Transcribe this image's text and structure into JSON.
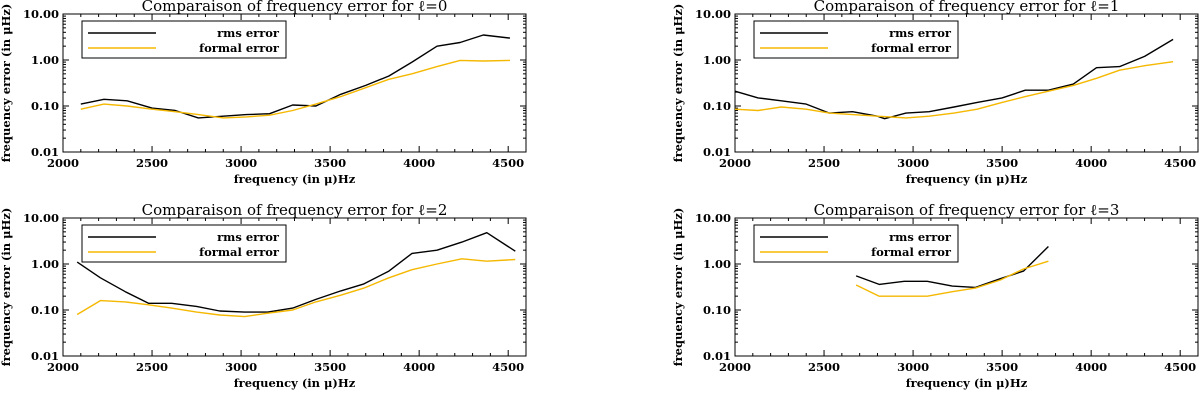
{
  "chart_data": [
    {
      "type": "line",
      "title": "Comparaison of frequency error for ℓ=0",
      "xlabel": "frequency (in μ)Hz",
      "ylabel": "frequency error (in μHz)",
      "xlim": [
        2000,
        4600
      ],
      "ylim": [
        0.01,
        10
      ],
      "yscale": "log",
      "xticks": [
        "2000",
        "2500",
        "3000",
        "3500",
        "4000",
        "4500"
      ],
      "yticks": [
        "0.01",
        "0.10",
        "1.00",
        "10.00"
      ],
      "series": [
        {
          "name": "rms error",
          "color": "#000000",
          "x": [
            2100,
            2230,
            2360,
            2500,
            2630,
            2760,
            2900,
            3030,
            3160,
            3290,
            3420,
            3560,
            3700,
            3830,
            3960,
            4100,
            4230,
            4360,
            4510
          ],
          "y": [
            0.11,
            0.14,
            0.13,
            0.09,
            0.08,
            0.055,
            0.06,
            0.065,
            0.068,
            0.105,
            0.1,
            0.18,
            0.28,
            0.45,
            0.9,
            2.0,
            2.4,
            3.5,
            3.0
          ]
        },
        {
          "name": "formal error",
          "color": "#f5b800",
          "x": [
            2100,
            2230,
            2360,
            2500,
            2630,
            2760,
            2900,
            3030,
            3160,
            3290,
            3420,
            3560,
            3700,
            3830,
            3960,
            4100,
            4230,
            4360,
            4510
          ],
          "y": [
            0.085,
            0.11,
            0.1,
            0.085,
            0.075,
            0.065,
            0.055,
            0.058,
            0.063,
            0.08,
            0.11,
            0.16,
            0.25,
            0.38,
            0.5,
            0.72,
            0.98,
            0.95,
            0.98
          ]
        }
      ]
    },
    {
      "type": "line",
      "title": "Comparaison of frequency error for ℓ=1",
      "xlabel": "frequency (in μ)Hz",
      "ylabel": "frequency error (in μHz)",
      "xlim": [
        2000,
        4600
      ],
      "ylim": [
        0.01,
        10
      ],
      "yscale": "log",
      "xticks": [
        "2000",
        "2500",
        "3000",
        "3500",
        "4000",
        "4500"
      ],
      "yticks": [
        "0.01",
        "0.10",
        "1.00",
        "10.00"
      ],
      "series": [
        {
          "name": "rms error",
          "color": "#000000",
          "x": [
            2000,
            2130,
            2260,
            2400,
            2530,
            2660,
            2800,
            2840,
            2960,
            3090,
            3230,
            3360,
            3500,
            3630,
            3760,
            3900,
            4030,
            4160,
            4300,
            4460
          ],
          "y": [
            0.21,
            0.15,
            0.13,
            0.11,
            0.07,
            0.075,
            0.06,
            0.053,
            0.07,
            0.075,
            0.095,
            0.12,
            0.15,
            0.22,
            0.22,
            0.3,
            0.68,
            0.72,
            1.2,
            2.8
          ]
        },
        {
          "name": "formal error",
          "color": "#f5b800",
          "x": [
            2000,
            2130,
            2260,
            2400,
            2530,
            2660,
            2800,
            2960,
            3090,
            3230,
            3360,
            3500,
            3630,
            3760,
            3900,
            4030,
            4160,
            4300,
            4460
          ],
          "y": [
            0.085,
            0.08,
            0.095,
            0.085,
            0.07,
            0.065,
            0.06,
            0.055,
            0.06,
            0.07,
            0.085,
            0.12,
            0.16,
            0.21,
            0.28,
            0.4,
            0.6,
            0.75,
            0.92
          ]
        }
      ]
    },
    {
      "type": "line",
      "title": "Comparaison of frequency error for ℓ=2",
      "xlabel": "frequency (in μ)Hz",
      "ylabel": "frequency error (in μHz)",
      "xlim": [
        2000,
        4600
      ],
      "ylim": [
        0.01,
        10
      ],
      "yscale": "log",
      "xticks": [
        "2000",
        "2500",
        "3000",
        "3500",
        "4000",
        "4500"
      ],
      "yticks": [
        "0.01",
        "0.10",
        "1.00",
        "10.00"
      ],
      "series": [
        {
          "name": "rms error",
          "color": "#000000",
          "x": [
            2080,
            2210,
            2350,
            2480,
            2610,
            2750,
            2880,
            3020,
            3150,
            3290,
            3420,
            3560,
            3690,
            3830,
            3960,
            4100,
            4240,
            4380,
            4540
          ],
          "y": [
            1.1,
            0.5,
            0.25,
            0.14,
            0.14,
            0.12,
            0.095,
            0.09,
            0.09,
            0.11,
            0.17,
            0.26,
            0.37,
            0.7,
            1.7,
            2.0,
            3.0,
            4.8,
            1.9
          ]
        },
        {
          "name": "formal error",
          "color": "#f5b800",
          "x": [
            2080,
            2210,
            2350,
            2480,
            2610,
            2750,
            2880,
            3020,
            3150,
            3290,
            3420,
            3560,
            3690,
            3830,
            3960,
            4100,
            4240,
            4380,
            4540
          ],
          "y": [
            0.08,
            0.16,
            0.15,
            0.13,
            0.11,
            0.09,
            0.078,
            0.072,
            0.085,
            0.1,
            0.15,
            0.21,
            0.3,
            0.5,
            0.75,
            1.0,
            1.3,
            1.15,
            1.25
          ]
        }
      ]
    },
    {
      "type": "line",
      "title": "Comparaison of frequency error for ℓ=3",
      "xlabel": "frequency (in μ)Hz",
      "ylabel": "frequency error (in μHz)",
      "xlim": [
        2000,
        4600
      ],
      "ylim": [
        0.01,
        10
      ],
      "yscale": "log",
      "xticks": [
        "2000",
        "2500",
        "3000",
        "3500",
        "4000",
        "4500"
      ],
      "yticks": [
        "0.01",
        "0.10",
        "1.00",
        "10.00"
      ],
      "series": [
        {
          "name": "rms error",
          "color": "#000000",
          "x": [
            2680,
            2810,
            2950,
            3080,
            3220,
            3350,
            3490,
            3620,
            3760
          ],
          "y": [
            0.55,
            0.36,
            0.42,
            0.42,
            0.33,
            0.31,
            0.48,
            0.7,
            2.4
          ]
        },
        {
          "name": "formal error",
          "color": "#f5b800",
          "x": [
            2680,
            2810,
            2950,
            3080,
            3220,
            3350,
            3490,
            3620,
            3760
          ],
          "y": [
            0.35,
            0.2,
            0.2,
            0.2,
            0.25,
            0.3,
            0.45,
            0.78,
            1.15
          ]
        }
      ]
    }
  ]
}
